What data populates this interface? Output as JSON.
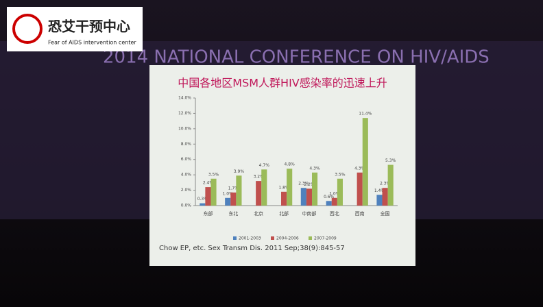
{
  "logo": {
    "name": "恐艾干预中心",
    "subtitle": "Fear of AIDS intervention center"
  },
  "banner": "2014 NATIONAL CONFERENCE ON HIV/AIDS",
  "chart_data": {
    "type": "bar",
    "title": "中国各地区MSM人群HIV感染率的迅速上升",
    "categories": [
      "东部",
      "东北",
      "北京",
      "北部",
      "中南部",
      "西北",
      "西南",
      "全国"
    ],
    "series": [
      {
        "name": "2001-2003",
        "color": "#4f81bd",
        "values": [
          0.3,
          1.0,
          null,
          null,
          2.3,
          0.6,
          null,
          1.4
        ],
        "value_labels": [
          "0.3%",
          "1.0%",
          null,
          null,
          "2.3%",
          "0.6%",
          null,
          "1.4%"
        ]
      },
      {
        "name": "2004-2006",
        "color": "#c0504d",
        "values": [
          2.4,
          1.7,
          3.2,
          1.8,
          2.2,
          1.0,
          4.3,
          2.3
        ],
        "value_labels": [
          "2.4%",
          "1.7%",
          "3.2%",
          "1.8%",
          "2.2%",
          "1.0%",
          "4.3%",
          "2.3%"
        ]
      },
      {
        "name": "2007-2009",
        "color": "#9bbb59",
        "values": [
          3.5,
          3.9,
          4.7,
          4.8,
          4.3,
          3.5,
          11.4,
          5.3
        ],
        "value_labels": [
          "3.5%",
          "3.9%",
          "4.7%",
          "4.8%",
          "4.3%",
          "3.5%",
          "11.4%",
          "5.3%"
        ]
      }
    ],
    "ylim": [
      0,
      14
    ],
    "yticks": [
      {
        "value": 0,
        "label": "0.0%"
      },
      {
        "value": 2,
        "label": "2.0%"
      },
      {
        "value": 4,
        "label": "4.0%"
      },
      {
        "value": 6,
        "label": "6.0%"
      },
      {
        "value": 8,
        "label": "8.0%"
      },
      {
        "value": 10,
        "label": "10.0%"
      },
      {
        "value": 12,
        "label": "12.0%"
      },
      {
        "value": 14,
        "label": "14.0%"
      }
    ],
    "source": "Chow EP, etc. Sex Transm Dis. 2011 Sep;38(9):845-57"
  }
}
